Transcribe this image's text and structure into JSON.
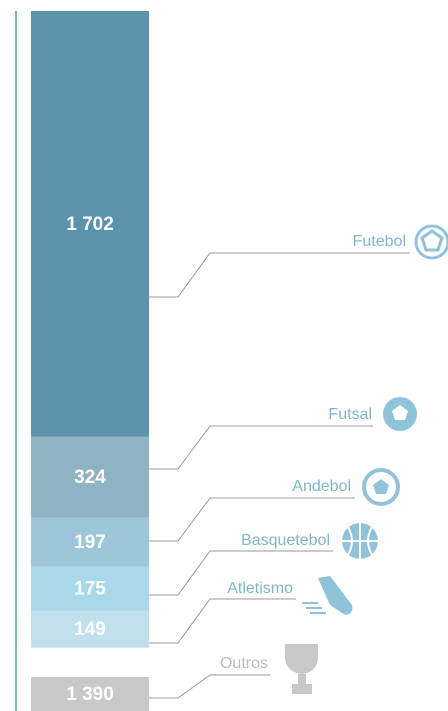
{
  "chart_data": {
    "type": "stacked_bar",
    "categories": [
      "Futebol",
      "Futsal",
      "Andebol",
      "Basquetebol",
      "Atletismo",
      "Outros"
    ],
    "values": [
      1702,
      324,
      197,
      175,
      149,
      1390
    ],
    "value_labels": [
      "1 702",
      "324",
      "197",
      "175",
      "149",
      "1 390"
    ],
    "colors": [
      "#5b93ab",
      "#8fb3c2",
      "#9dc6da",
      "#a9d8ea",
      "#c0e0ee",
      "#c8c8c8"
    ]
  }
}
